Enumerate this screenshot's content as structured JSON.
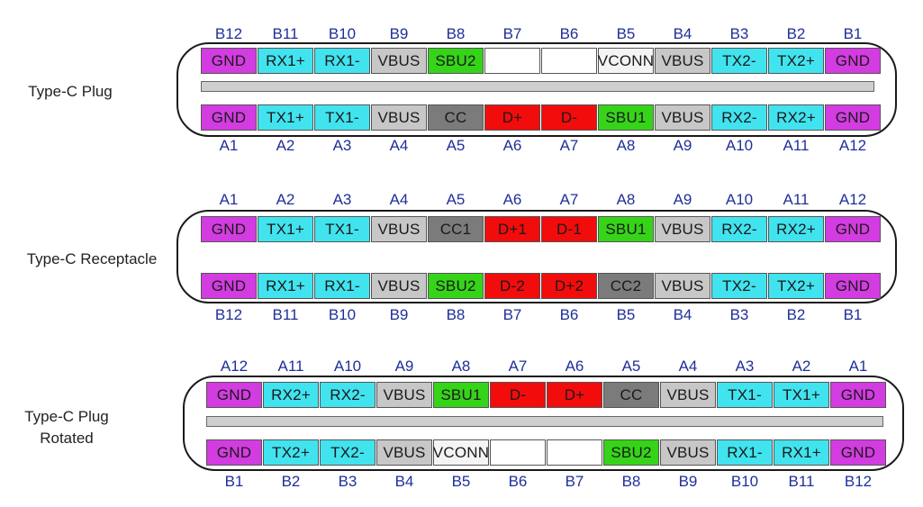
{
  "colors": {
    "gnd": "#d33ce0",
    "data": "#41e3ef",
    "vbus": "#c7c7c7",
    "sbu": "#36d419",
    "cc": "#7b7b7b",
    "usb2": "#f20c0c",
    "vconn": "#f4f4f4",
    "empty": "#ffffff",
    "pin_number": "#1f2f9a"
  },
  "sections": [
    {
      "label_lines": [
        "Type-C Plug"
      ],
      "top_numbers": [
        "B12",
        "B11",
        "B10",
        "B9",
        "B8",
        "B7",
        "B6",
        "B5",
        "B4",
        "B3",
        "B2",
        "B1"
      ],
      "top_pins": [
        {
          "label": "GND",
          "kind": "gnd"
        },
        {
          "label": "RX1+",
          "kind": "data"
        },
        {
          "label": "RX1-",
          "kind": "data"
        },
        {
          "label": "VBUS",
          "kind": "vbus"
        },
        {
          "label": "SBU2",
          "kind": "sbu"
        },
        {
          "label": "",
          "kind": "empty"
        },
        {
          "label": "",
          "kind": "empty"
        },
        {
          "label": "VCONN",
          "kind": "vconn"
        },
        {
          "label": "VBUS",
          "kind": "vbus"
        },
        {
          "label": "TX2-",
          "kind": "data"
        },
        {
          "label": "TX2+",
          "kind": "data"
        },
        {
          "label": "GND",
          "kind": "gnd"
        }
      ],
      "bottom_pins": [
        {
          "label": "GND",
          "kind": "gnd"
        },
        {
          "label": "TX1+",
          "kind": "data"
        },
        {
          "label": "TX1-",
          "kind": "data"
        },
        {
          "label": "VBUS",
          "kind": "vbus"
        },
        {
          "label": "CC",
          "kind": "cc"
        },
        {
          "label": "D+",
          "kind": "usb2"
        },
        {
          "label": "D-",
          "kind": "usb2"
        },
        {
          "label": "SBU1",
          "kind": "sbu"
        },
        {
          "label": "VBUS",
          "kind": "vbus"
        },
        {
          "label": "RX2-",
          "kind": "data"
        },
        {
          "label": "RX2+",
          "kind": "data"
        },
        {
          "label": "GND",
          "kind": "gnd"
        }
      ],
      "bottom_numbers": [
        "A1",
        "A2",
        "A3",
        "A4",
        "A5",
        "A6",
        "A7",
        "A8",
        "A9",
        "A10",
        "A11",
        "A12"
      ],
      "has_tongue": true
    },
    {
      "label_lines": [
        "Type-C Receptacle"
      ],
      "top_numbers": [
        "A1",
        "A2",
        "A3",
        "A4",
        "A5",
        "A6",
        "A7",
        "A8",
        "A9",
        "A10",
        "A11",
        "A12"
      ],
      "top_pins": [
        {
          "label": "GND",
          "kind": "gnd"
        },
        {
          "label": "TX1+",
          "kind": "data"
        },
        {
          "label": "TX1-",
          "kind": "data"
        },
        {
          "label": "VBUS",
          "kind": "vbus"
        },
        {
          "label": "CC1",
          "kind": "cc"
        },
        {
          "label": "D+1",
          "kind": "usb2"
        },
        {
          "label": "D-1",
          "kind": "usb2"
        },
        {
          "label": "SBU1",
          "kind": "sbu"
        },
        {
          "label": "VBUS",
          "kind": "vbus"
        },
        {
          "label": "RX2-",
          "kind": "data"
        },
        {
          "label": "RX2+",
          "kind": "data"
        },
        {
          "label": "GND",
          "kind": "gnd"
        }
      ],
      "bottom_pins": [
        {
          "label": "GND",
          "kind": "gnd"
        },
        {
          "label": "RX1+",
          "kind": "data"
        },
        {
          "label": "RX1-",
          "kind": "data"
        },
        {
          "label": "VBUS",
          "kind": "vbus"
        },
        {
          "label": "SBU2",
          "kind": "sbu"
        },
        {
          "label": "D-2",
          "kind": "usb2"
        },
        {
          "label": "D+2",
          "kind": "usb2"
        },
        {
          "label": "CC2",
          "kind": "cc"
        },
        {
          "label": "VBUS",
          "kind": "vbus"
        },
        {
          "label": "TX2-",
          "kind": "data"
        },
        {
          "label": "TX2+",
          "kind": "data"
        },
        {
          "label": "GND",
          "kind": "gnd"
        }
      ],
      "bottom_numbers": [
        "B12",
        "B11",
        "B10",
        "B9",
        "B8",
        "B7",
        "B6",
        "B5",
        "B4",
        "B3",
        "B2",
        "B1"
      ],
      "has_tongue": false
    },
    {
      "label_lines": [
        "Type-C Plug",
        "Rotated"
      ],
      "top_numbers": [
        "A12",
        "A11",
        "A10",
        "A9",
        "A8",
        "A7",
        "A6",
        "A5",
        "A4",
        "A3",
        "A2",
        "A1"
      ],
      "top_pins": [
        {
          "label": "GND",
          "kind": "gnd"
        },
        {
          "label": "RX2+",
          "kind": "data"
        },
        {
          "label": "RX2-",
          "kind": "data"
        },
        {
          "label": "VBUS",
          "kind": "vbus"
        },
        {
          "label": "SBU1",
          "kind": "sbu"
        },
        {
          "label": "D-",
          "kind": "usb2"
        },
        {
          "label": "D+",
          "kind": "usb2"
        },
        {
          "label": "CC",
          "kind": "cc"
        },
        {
          "label": "VBUS",
          "kind": "vbus"
        },
        {
          "label": "TX1-",
          "kind": "data"
        },
        {
          "label": "TX1+",
          "kind": "data"
        },
        {
          "label": "GND",
          "kind": "gnd"
        }
      ],
      "bottom_pins": [
        {
          "label": "GND",
          "kind": "gnd"
        },
        {
          "label": "TX2+",
          "kind": "data"
        },
        {
          "label": "TX2-",
          "kind": "data"
        },
        {
          "label": "VBUS",
          "kind": "vbus"
        },
        {
          "label": "VCONN",
          "kind": "vconn"
        },
        {
          "label": "",
          "kind": "empty"
        },
        {
          "label": "",
          "kind": "empty"
        },
        {
          "label": "SBU2",
          "kind": "sbu"
        },
        {
          "label": "VBUS",
          "kind": "vbus"
        },
        {
          "label": "RX1-",
          "kind": "data"
        },
        {
          "label": "RX1+",
          "kind": "data"
        },
        {
          "label": "GND",
          "kind": "gnd"
        }
      ],
      "bottom_numbers": [
        "B1",
        "B2",
        "B3",
        "B4",
        "B5",
        "B6",
        "B7",
        "B8",
        "B9",
        "B10",
        "B11",
        "B12"
      ],
      "has_tongue": true
    }
  ]
}
